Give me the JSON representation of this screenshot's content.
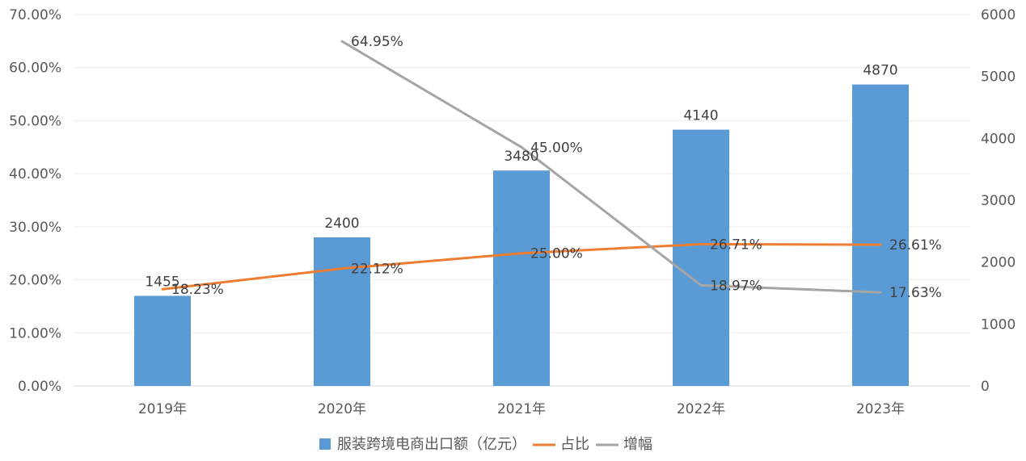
{
  "chart_data": {
    "type": "bar",
    "categories": [
      "2019年",
      "2020年",
      "2021年",
      "2022年",
      "2023年"
    ],
    "series": [
      {
        "name": "服装跨境电商出口额（亿元）",
        "type": "bar",
        "axis": "right",
        "values": [
          1455,
          2400,
          3480,
          4140,
          4870
        ],
        "labels": [
          "1455",
          "2400",
          "3480",
          "4140",
          "4870"
        ],
        "color": "#5B9BD5"
      },
      {
        "name": "占比",
        "type": "line",
        "axis": "left",
        "values": [
          18.23,
          22.12,
          25.0,
          26.71,
          26.61
        ],
        "labels": [
          "18.23%",
          "22.12%",
          "25.00%",
          "26.71%",
          "26.61%"
        ],
        "color": "#ED7D31"
      },
      {
        "name": "增幅",
        "type": "line",
        "axis": "left",
        "values": [
          null,
          64.95,
          45.0,
          18.97,
          17.63
        ],
        "labels": [
          null,
          "64.95%",
          "45.00%",
          "18.97%",
          "17.63%"
        ],
        "color": "#A5A5A5"
      }
    ],
    "left_axis": {
      "range": [
        0,
        70
      ],
      "ticks": [
        "0.00%",
        "10.00%",
        "20.00%",
        "30.00%",
        "40.00%",
        "50.00%",
        "60.00%",
        "70.00%"
      ]
    },
    "right_axis": {
      "range": [
        0,
        6000
      ],
      "ticks": [
        "0",
        "1000",
        "2000",
        "3000",
        "4000",
        "5000",
        "6000"
      ]
    },
    "grid": true,
    "legend": "bottom"
  }
}
